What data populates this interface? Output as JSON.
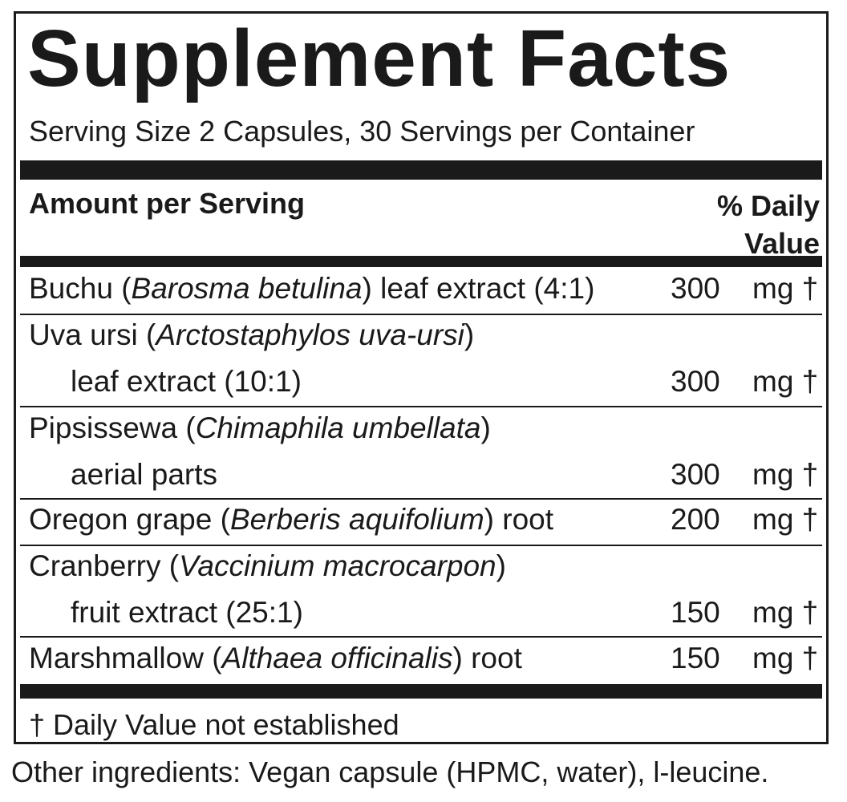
{
  "title": "Supplement Facts",
  "serving": "Serving Size 2 Capsules, 30 Servings per Container",
  "header": {
    "amount": "Amount per Serving",
    "daily_line1": "% Daily",
    "daily_line2": "Value"
  },
  "ingredients": [
    {
      "name": "Buchu",
      "latin": "Barosma betulina",
      "rest": " leaf extract (4:1)",
      "extra": "",
      "amount": "300",
      "unit": "mg †"
    },
    {
      "name": "Uva ursi",
      "latin": "Arctostaphylos uva-ursi",
      "rest": "",
      "extra": "leaf extract (10:1)",
      "amount": "300",
      "unit": "mg †"
    },
    {
      "name": "Pipsissewa",
      "latin": "Chimaphila umbellata",
      "rest": "",
      "extra": "aerial parts",
      "amount": "300",
      "unit": "mg †"
    },
    {
      "name": "Oregon grape",
      "latin": "Berberis aquifolium",
      "rest": " root",
      "extra": "",
      "amount": "200",
      "unit": "mg †"
    },
    {
      "name": "Cranberry",
      "latin": "Vaccinium macrocarpon",
      "rest": "",
      "extra": "fruit extract (25:1)",
      "amount": "150",
      "unit": "mg †"
    },
    {
      "name": "Marshmallow",
      "latin": "Althaea officinalis",
      "rest": " root",
      "extra": "",
      "amount": "150",
      "unit": "mg †"
    }
  ],
  "footnote": "† Daily Value not established",
  "other_ingredients": "Other ingredients: Vegan capsule (HPMC, water), l-leucine."
}
